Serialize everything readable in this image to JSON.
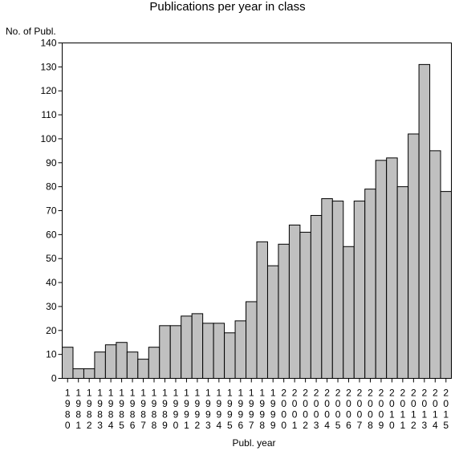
{
  "chart_data": {
    "type": "bar",
    "title": "Publications per year in class",
    "ylabel": "No. of Publ.",
    "xlabel": "Publ. year",
    "ylim": [
      0,
      140
    ],
    "yticks": [
      0,
      10,
      20,
      30,
      40,
      50,
      60,
      70,
      80,
      90,
      100,
      110,
      120,
      130,
      140
    ],
    "bar_color": "#c0c0c0",
    "grid": false,
    "categories": [
      "1980",
      "1981",
      "1982",
      "1983",
      "1984",
      "1985",
      "1986",
      "1987",
      "1988",
      "1989",
      "1990",
      "1991",
      "1992",
      "1993",
      "1994",
      "1995",
      "1996",
      "1997",
      "1998",
      "1999",
      "2000",
      "2001",
      "2002",
      "2003",
      "2004",
      "2005",
      "2006",
      "2007",
      "2008",
      "2009",
      "2010",
      "2011",
      "2012",
      "2013",
      "2014",
      "2015"
    ],
    "values": [
      13,
      4,
      4,
      11,
      14,
      15,
      11,
      8,
      13,
      22,
      22,
      26,
      27,
      23,
      23,
      19,
      24,
      32,
      57,
      47,
      56,
      64,
      61,
      68,
      75,
      74,
      55,
      74,
      79,
      91,
      92,
      80,
      102,
      131,
      95,
      78
    ]
  }
}
